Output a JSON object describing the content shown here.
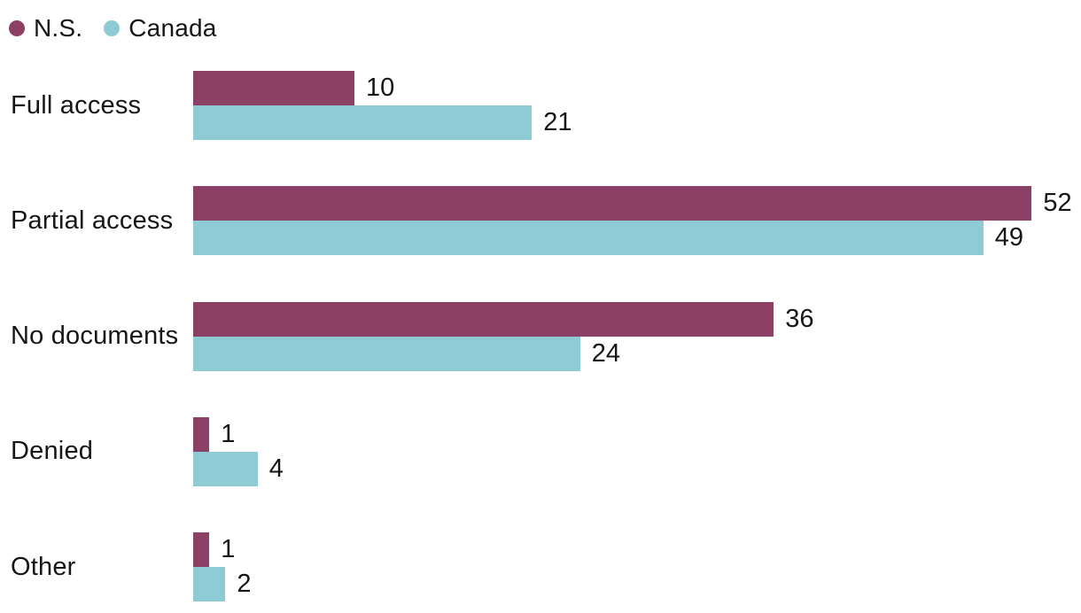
{
  "legend": {
    "items": [
      {
        "label": "N.S.",
        "color": "#8c4066"
      },
      {
        "label": "Canada",
        "color": "#8ecbd4"
      }
    ]
  },
  "chart_data": {
    "type": "bar",
    "orientation": "horizontal",
    "title": "",
    "xlabel": "",
    "ylabel": "",
    "categories": [
      "Full access",
      "Partial access",
      "No documents",
      "Denied",
      "Other"
    ],
    "series": [
      {
        "name": "N.S.",
        "color": "#8c4066",
        "values": [
          10,
          52,
          36,
          1,
          1
        ]
      },
      {
        "name": "Canada",
        "color": "#8ecbd4",
        "values": [
          21,
          49,
          24,
          4,
          2
        ]
      }
    ],
    "xlim": [
      0,
      55
    ],
    "grid": false,
    "legend_position": "top-left",
    "value_labels": true
  }
}
